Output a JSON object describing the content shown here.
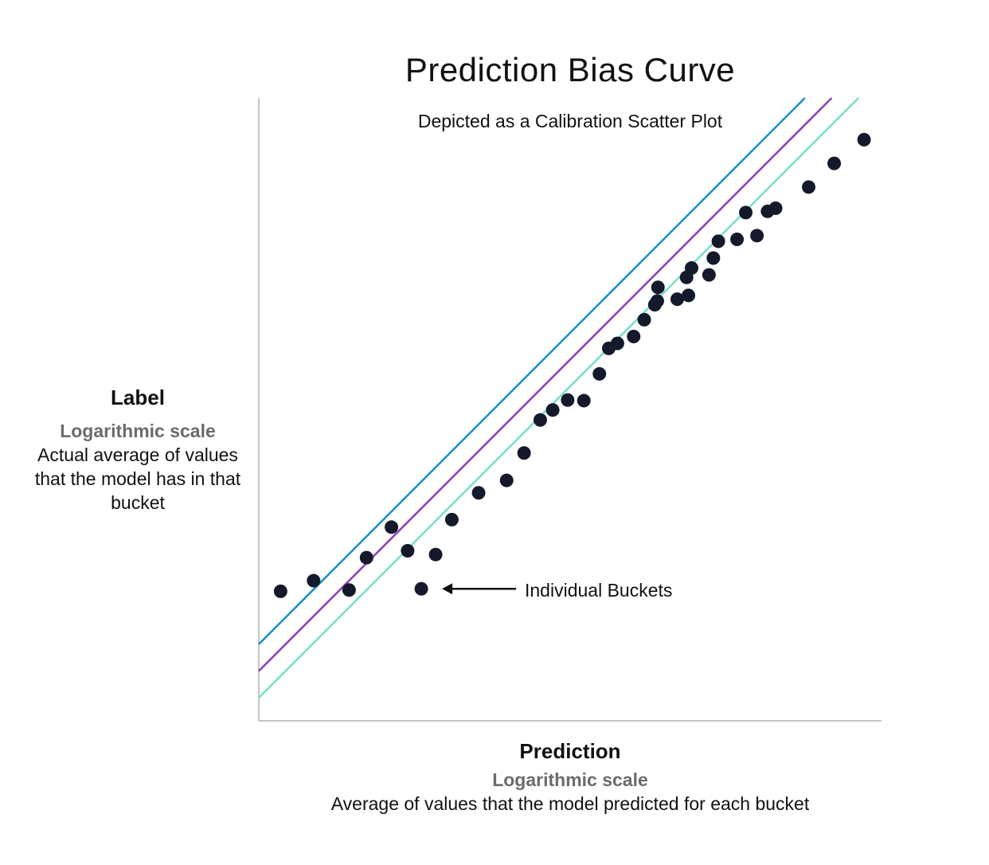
{
  "chart_data": {
    "type": "scatter",
    "title": "Prediction Bias Curve",
    "subtitle": "Depicted as a Calibration Scatter Plot",
    "xlabel": "Prediction",
    "xlabel_scale": "Logarithmic scale",
    "xlabel_desc": "Average of values that the model predicted for each bucket",
    "ylabel": "Label",
    "ylabel_scale": "Logarithmic scale",
    "ylabel_desc": "Actual average of values that the model has in that bucket",
    "x_scale": "log",
    "y_scale": "log",
    "xlim": [
      0,
      100
    ],
    "ylim": [
      0,
      100
    ],
    "grid": false,
    "annotation": "Individual Buckets",
    "annotation_target_index": 7,
    "reference_lines": [
      {
        "color": "#1b8fc4",
        "intercept": 12.3
      },
      {
        "color": "#8e3fb5",
        "intercept": 8.0
      },
      {
        "color": "#79e0c8",
        "intercept": 3.7
      }
    ],
    "points": [
      {
        "x": 3.5,
        "y": 20.8
      },
      {
        "x": 8.8,
        "y": 22.5
      },
      {
        "x": 14.5,
        "y": 21.0
      },
      {
        "x": 17.3,
        "y": 26.2
      },
      {
        "x": 21.3,
        "y": 31.1
      },
      {
        "x": 23.9,
        "y": 27.3
      },
      {
        "x": 28.4,
        "y": 26.7
      },
      {
        "x": 26.1,
        "y": 21.2
      },
      {
        "x": 31.0,
        "y": 32.3
      },
      {
        "x": 35.3,
        "y": 36.6
      },
      {
        "x": 39.8,
        "y": 38.6
      },
      {
        "x": 42.6,
        "y": 43.0
      },
      {
        "x": 45.2,
        "y": 48.3
      },
      {
        "x": 47.2,
        "y": 49.9
      },
      {
        "x": 49.6,
        "y": 51.5
      },
      {
        "x": 52.2,
        "y": 51.4
      },
      {
        "x": 54.7,
        "y": 55.7
      },
      {
        "x": 56.2,
        "y": 59.8
      },
      {
        "x": 57.6,
        "y": 60.6
      },
      {
        "x": 60.2,
        "y": 61.7
      },
      {
        "x": 61.9,
        "y": 64.4
      },
      {
        "x": 63.6,
        "y": 66.8
      },
      {
        "x": 64.0,
        "y": 67.4
      },
      {
        "x": 64.1,
        "y": 69.6
      },
      {
        "x": 67.2,
        "y": 67.7
      },
      {
        "x": 68.7,
        "y": 71.2
      },
      {
        "x": 69.0,
        "y": 68.3
      },
      {
        "x": 69.5,
        "y": 72.7
      },
      {
        "x": 72.3,
        "y": 71.6
      },
      {
        "x": 73.0,
        "y": 74.3
      },
      {
        "x": 73.8,
        "y": 77.0
      },
      {
        "x": 76.8,
        "y": 77.3
      },
      {
        "x": 78.2,
        "y": 81.6
      },
      {
        "x": 80.0,
        "y": 77.9
      },
      {
        "x": 81.7,
        "y": 81.8
      },
      {
        "x": 83.0,
        "y": 82.3
      },
      {
        "x": 88.3,
        "y": 85.7
      },
      {
        "x": 92.4,
        "y": 89.5
      },
      {
        "x": 97.2,
        "y": 93.3
      }
    ]
  }
}
